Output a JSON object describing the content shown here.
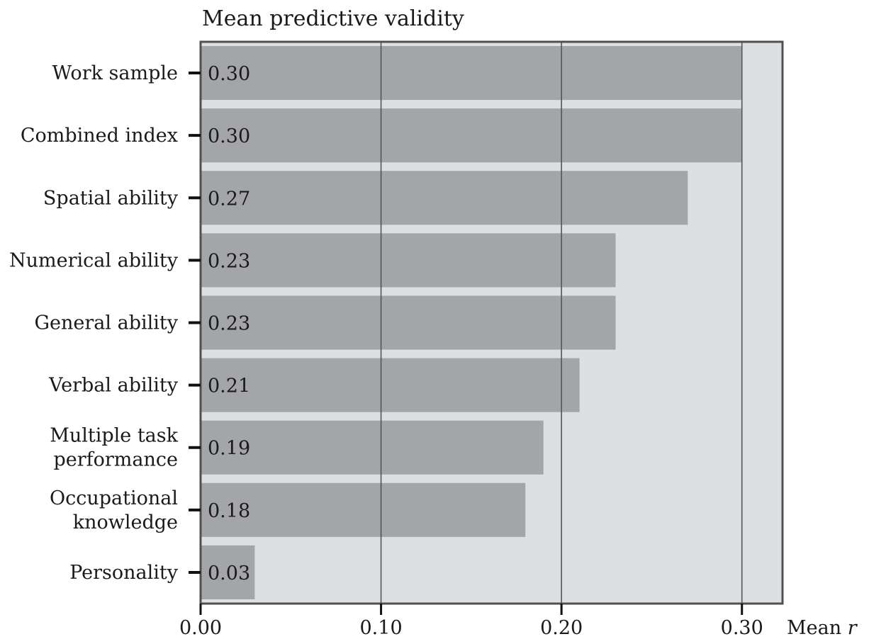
{
  "chart_data": {
    "type": "bar",
    "orientation": "horizontal",
    "title": "Mean predictive validity",
    "xlabel": "Mean r",
    "xlim": [
      0,
      0.3225
    ],
    "xticks": [
      "0.00",
      "0.10",
      "0.20",
      "0.30"
    ],
    "xtick_values": [
      0,
      0.1,
      0.2,
      0.3
    ],
    "grid": true,
    "legend": "none",
    "colors": {
      "bar": "#a4a5a9",
      "background": "#dedfe1",
      "frame": "#505050"
    },
    "categories": [
      [
        "Work sample"
      ],
      [
        "Combined index"
      ],
      [
        "Spatial ability"
      ],
      [
        "Numerical ability"
      ],
      [
        "General ability"
      ],
      [
        "Verbal ability"
      ],
      [
        "Multiple task",
        "performance"
      ],
      [
        "Occupational",
        "knowledge"
      ],
      [
        "Personality"
      ]
    ],
    "values": [
      0.3,
      0.3,
      0.27,
      0.23,
      0.23,
      0.21,
      0.19,
      0.18,
      0.03
    ],
    "value_labels": [
      "0.30",
      "0.30",
      "0.27",
      "0.23",
      "0.23",
      "0.21",
      "0.19",
      "0.18",
      "0.03"
    ]
  }
}
